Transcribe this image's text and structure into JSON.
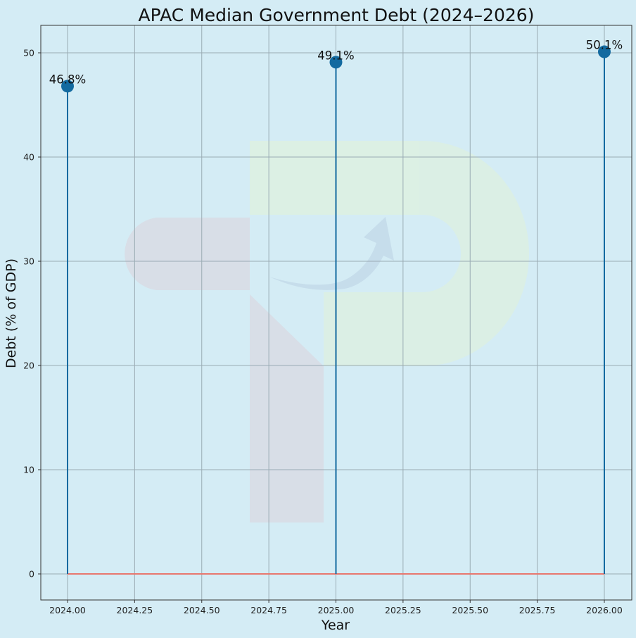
{
  "chart_data": {
    "type": "stem",
    "title": "APAC Median Government Debt (2024–2026)",
    "xlabel": "Year",
    "ylabel": "Debt (% of GDP)",
    "x": [
      2024,
      2025,
      2026
    ],
    "values": [
      46.8,
      49.1,
      50.1
    ],
    "annotations": [
      "46.8%",
      "49.1%",
      "50.1%"
    ],
    "xlim": [
      2023.9,
      2026.1
    ],
    "ylim": [
      -2.5,
      52.6
    ],
    "xticks": [
      2024.0,
      2024.25,
      2024.5,
      2024.75,
      2025.0,
      2025.25,
      2025.5,
      2025.75,
      2026.0
    ],
    "xtick_labels": [
      "2024.00",
      "2024.25",
      "2024.50",
      "2024.75",
      "2025.00",
      "2025.25",
      "2025.50",
      "2025.75",
      "2026.00"
    ],
    "yticks": [
      0,
      10,
      20,
      30,
      40,
      50
    ],
    "ytick_labels": [
      "0",
      "10",
      "20",
      "30",
      "40",
      "50"
    ],
    "grid": true,
    "legend": null,
    "colors": {
      "background": "#d4ecf5",
      "stem": "#136aa0",
      "marker": "#136aa0",
      "baseline": "#e8776e",
      "grid": "#9aabb4"
    }
  }
}
